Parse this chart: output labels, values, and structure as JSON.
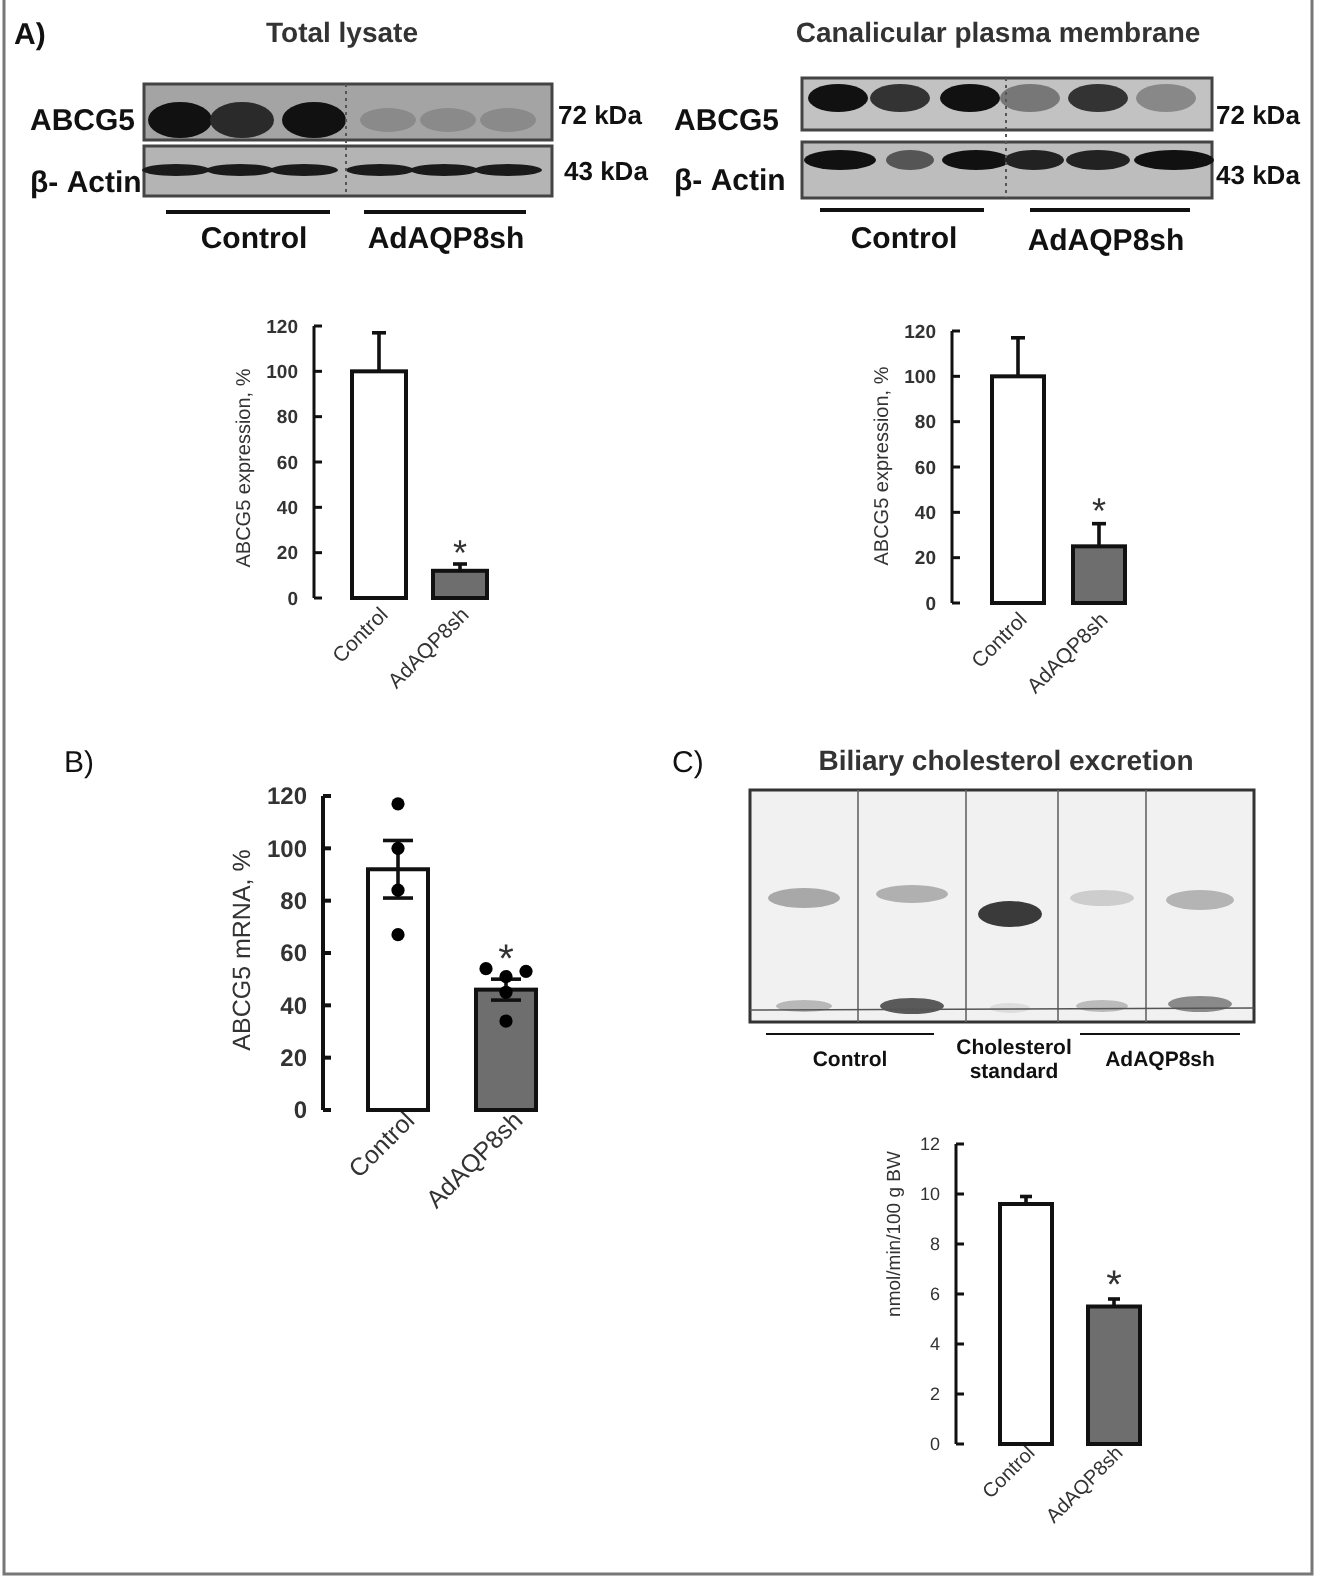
{
  "chart_data": [
    {
      "type": "bar",
      "title": "Total lysate",
      "ylabel": "ABCG5 expression, %",
      "categories": [
        "Control",
        "AdAQP8sh"
      ],
      "values": [
        100,
        12
      ],
      "colors": [
        "#ffffff",
        "#6e6e6e"
      ],
      "errors": [
        [
          100,
          117
        ],
        [
          12,
          15
        ]
      ],
      "ylim": [
        0,
        120
      ],
      "yticks": [
        0,
        20,
        40,
        60,
        80,
        100,
        120
      ],
      "annotations": [
        "A)",
        "ABCG5",
        "72 kDa",
        "β- Actin",
        "43 kDa",
        "Control",
        "AdAQP8sh",
        {
          "text": "*",
          "x": "AdAQP8sh",
          "y": 15
        }
      ]
    },
    {
      "type": "bar",
      "title": "Canalicular plasma membrane",
      "ylabel": "ABCG5 expression, %",
      "categories": [
        "Control",
        "AdAQP8sh"
      ],
      "values": [
        100,
        25
      ],
      "colors": [
        "#ffffff",
        "#6e6e6e"
      ],
      "errors": [
        [
          100,
          117
        ],
        [
          25,
          35
        ]
      ],
      "ylim": [
        0,
        120
      ],
      "yticks": [
        0,
        20,
        40,
        60,
        80,
        100,
        120
      ],
      "annotations": [
        "ABCG5",
        "72 kDa",
        "β- Actin",
        "43 kDa",
        "Control",
        "AdAQP8sh",
        {
          "text": "*",
          "x": "AdAQP8sh",
          "y": 35
        }
      ]
    },
    {
      "type": "bar",
      "ylabel": "ABCG5 mRNA, %",
      "categories": [
        "Control",
        "AdAQP8sh"
      ],
      "series": [
        {
          "type": "bar",
          "values": [
            92,
            46
          ],
          "colors": [
            "#ffffff",
            "#6e6e6e"
          ],
          "errors": [
            11,
            4
          ]
        },
        {
          "type": "scatter",
          "x": [
            "Control",
            "Control",
            "Control",
            "Control",
            "AdAQP8sh",
            "AdAQP8sh",
            "AdAQP8sh",
            "AdAQP8sh",
            "AdAQP8sh"
          ],
          "values": [
            117,
            100,
            84,
            67,
            51,
            54,
            53,
            45,
            34
          ],
          "color": "#000000"
        }
      ],
      "marker": "circle",
      "ylim": [
        0,
        120
      ],
      "yticks": [
        0,
        20,
        40,
        60,
        80,
        100,
        120
      ],
      "annotations": [
        "B)",
        {
          "text": "*",
          "x": "AdAQP8sh",
          "y": 54
        }
      ]
    },
    {
      "type": "bar",
      "title": "Biliary cholesterol excretion",
      "ylabel": "nmol/min/100 g BW",
      "categories": [
        "Control",
        "AdAQP8sh"
      ],
      "values": [
        9.6,
        5.5
      ],
      "colors": [
        "#ffffff",
        "#6e6e6e"
      ],
      "errors": [
        [
          9.6,
          9.9
        ],
        [
          5.5,
          5.8
        ]
      ],
      "ylim": [
        0,
        12
      ],
      "yticks": [
        0,
        2,
        4,
        6,
        8,
        10,
        12
      ],
      "annotations": [
        "C)",
        "Control",
        "Cholesterol standard",
        "AdAQP8sh",
        {
          "text": "*",
          "x": "AdAQP8sh",
          "y": 5.8
        }
      ]
    }
  ]
}
